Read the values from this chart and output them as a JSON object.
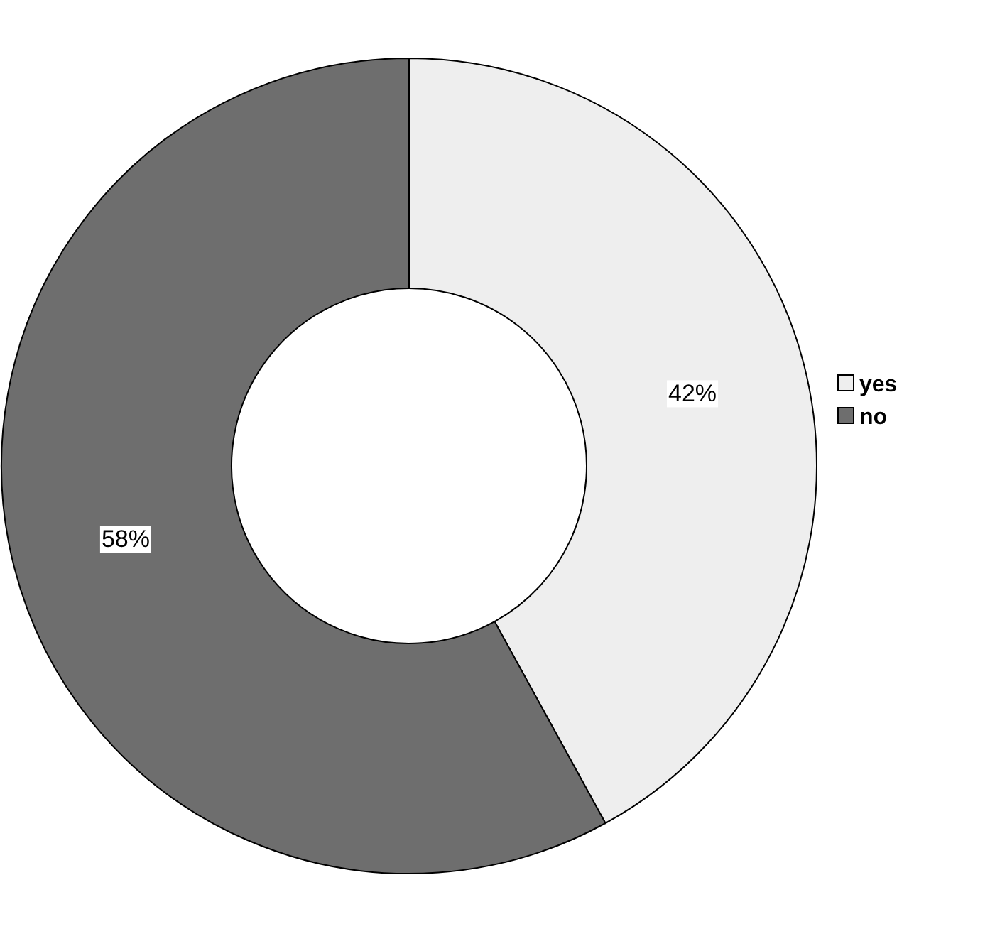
{
  "chart_data": {
    "type": "donut",
    "categories": [
      "yes",
      "no"
    ],
    "values": [
      42,
      58
    ],
    "colors": [
      "#eeeeee",
      "#6e6e6e"
    ],
    "value_labels": [
      "42%",
      "58%"
    ],
    "legend": "right"
  }
}
